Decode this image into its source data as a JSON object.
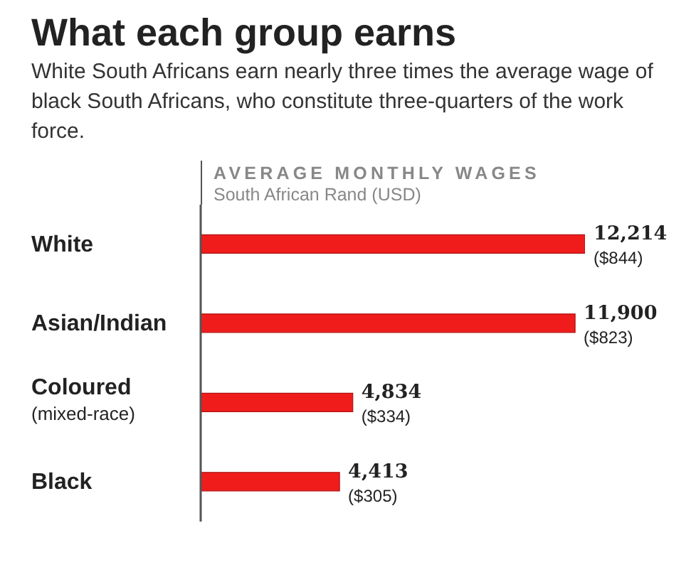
{
  "chart_data": {
    "type": "bar",
    "orientation": "horizontal",
    "title": "What each group earns",
    "subtitle": "White South Africans earn nearly three times the average wage of black South Africans, who constitute three-quarters of the work force.",
    "xlabel": "AVERAGE MONTHLY WAGES",
    "annotations": [
      "South African Rand (USD)"
    ],
    "categories": [
      "White",
      "Asian/Indian",
      "Coloured\n(mixed-race)",
      "Black"
    ],
    "values": [
      12214,
      11900,
      4834,
      4413
    ],
    "value_labels": [
      "12,214\n($844)",
      "11,900\n($823)",
      "4,834\n($334)",
      "4,413\n($305)"
    ],
    "color": "#f01c1c"
  }
}
